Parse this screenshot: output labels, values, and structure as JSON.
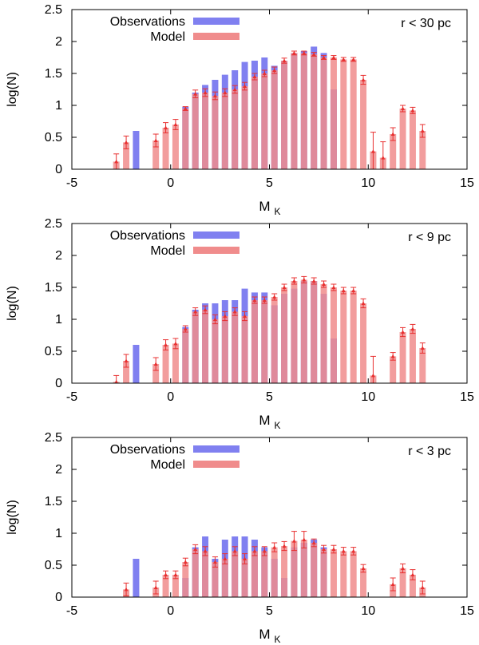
{
  "colors": {
    "observations": "#8080f0",
    "model": "#f08c8c",
    "errorbar": "#e83030",
    "axis": "#000000"
  },
  "chart_data": [
    {
      "type": "bar",
      "annotation": "r < 30 pc",
      "xlabel": "M",
      "xlabel_sub": "K",
      "ylabel": "log(N)",
      "xlim": [
        -5,
        15
      ],
      "ylim": [
        0,
        2.5
      ],
      "xticks": [
        "-5",
        "0",
        "5",
        "10",
        "15"
      ],
      "yticks": [
        "0",
        "0.5",
        "1",
        "1.5",
        "2",
        "2.5"
      ],
      "legend_position": "top-left",
      "series": [
        {
          "name": "Observations",
          "x": [
            -1.75,
            0.75,
            1.25,
            1.75,
            2.25,
            2.75,
            3.25,
            3.75,
            4.25,
            4.75,
            5.25,
            5.75,
            6.25,
            6.75,
            7.25,
            7.75,
            8.25
          ],
          "values": [
            0.6,
            0.98,
            1.2,
            1.32,
            1.4,
            1.48,
            1.55,
            1.68,
            1.7,
            1.75,
            1.62,
            1.7,
            1.82,
            1.85,
            1.92,
            1.82,
            1.25
          ]
        },
        {
          "name": "Model",
          "x": [
            -2.75,
            -2.25,
            -0.75,
            -0.25,
            0.25,
            0.75,
            1.25,
            1.75,
            2.25,
            2.75,
            3.25,
            3.75,
            4.25,
            4.75,
            5.25,
            5.75,
            6.25,
            6.75,
            7.25,
            7.75,
            8.25,
            8.75,
            9.25,
            9.75,
            10.25,
            10.75,
            11.25,
            11.75,
            12.25,
            12.75
          ],
          "values": [
            0.12,
            0.42,
            0.45,
            0.65,
            0.7,
            0.95,
            1.18,
            1.2,
            1.15,
            1.2,
            1.25,
            1.3,
            1.45,
            1.5,
            1.55,
            1.7,
            1.82,
            1.82,
            1.8,
            1.75,
            1.75,
            1.72,
            1.72,
            1.4,
            0.28,
            0.18,
            0.55,
            0.95,
            0.92,
            0.6
          ],
          "errors": [
            0.12,
            0.1,
            0.1,
            0.08,
            0.08,
            0.03,
            0.06,
            0.06,
            0.06,
            0.06,
            0.06,
            0.06,
            0.05,
            0.05,
            0.05,
            0.04,
            0.03,
            0.03,
            0.03,
            0.03,
            0.03,
            0.03,
            0.03,
            0.07,
            0.3,
            0.25,
            0.1,
            0.05,
            0.05,
            0.1
          ]
        }
      ]
    },
    {
      "type": "bar",
      "annotation": "r < 9 pc",
      "xlabel": "M",
      "xlabel_sub": "K",
      "ylabel": "log(N)",
      "xlim": [
        -5,
        15
      ],
      "ylim": [
        0,
        2.5
      ],
      "xticks": [
        "-5",
        "0",
        "5",
        "10",
        "15"
      ],
      "yticks": [
        "0",
        "0.5",
        "1",
        "1.5",
        "2",
        "2.5"
      ],
      "legend_position": "top-left",
      "series": [
        {
          "name": "Observations",
          "x": [
            -1.75,
            0.75,
            1.25,
            1.75,
            2.25,
            2.75,
            3.25,
            3.75,
            4.25,
            4.75,
            5.25,
            5.75,
            6.25,
            6.75,
            7.25,
            7.75,
            8.25
          ],
          "values": [
            0.6,
            0.88,
            1.15,
            1.25,
            1.25,
            1.3,
            1.3,
            1.48,
            1.42,
            1.42,
            1.22,
            1.4,
            1.48,
            1.6,
            1.6,
            1.4,
            0.7
          ],
          "errors": []
        },
        {
          "name": "Model",
          "x": [
            -2.75,
            -2.25,
            -0.75,
            -0.25,
            0.25,
            0.75,
            1.25,
            1.75,
            2.25,
            2.75,
            3.25,
            3.75,
            4.25,
            4.75,
            5.25,
            5.75,
            6.25,
            6.75,
            7.25,
            7.75,
            8.25,
            8.75,
            9.25,
            9.75,
            10.25,
            11.25,
            11.75,
            12.25,
            12.75
          ],
          "values": [
            0.02,
            0.35,
            0.3,
            0.6,
            0.62,
            0.85,
            1.12,
            1.15,
            1.0,
            1.05,
            1.12,
            1.05,
            1.3,
            1.3,
            1.35,
            1.5,
            1.6,
            1.62,
            1.6,
            1.55,
            1.5,
            1.45,
            1.45,
            1.25,
            0.12,
            0.42,
            0.8,
            0.85,
            0.55
          ],
          "errors": [
            0.1,
            0.1,
            0.1,
            0.08,
            0.08,
            0.05,
            0.06,
            0.06,
            0.07,
            0.07,
            0.06,
            0.07,
            0.05,
            0.05,
            0.05,
            0.05,
            0.05,
            0.05,
            0.05,
            0.05,
            0.05,
            0.05,
            0.05,
            0.07,
            0.3,
            0.06,
            0.07,
            0.07,
            0.08
          ]
        }
      ]
    },
    {
      "type": "bar",
      "annotation": "r < 3 pc",
      "xlabel": "M",
      "xlabel_sub": "K",
      "ylabel": "log(N)",
      "xlim": [
        -5,
        15
      ],
      "ylim": [
        0,
        2.5
      ],
      "xticks": [
        "-5",
        "0",
        "5",
        "10",
        "15"
      ],
      "yticks": [
        "0",
        "0.5",
        "1",
        "1.5",
        "2",
        "2.5"
      ],
      "legend_position": "top-left",
      "series": [
        {
          "name": "Observations",
          "x": [
            -1.75,
            0.75,
            1.25,
            1.75,
            2.25,
            2.75,
            3.25,
            3.75,
            4.25,
            4.75,
            5.25,
            5.75,
            6.25,
            6.75,
            7.25,
            7.75
          ],
          "values": [
            0.6,
            0.3,
            0.78,
            0.95,
            0.6,
            0.9,
            0.95,
            0.95,
            0.9,
            0.78,
            0.6,
            0.3,
            0.78,
            0.85,
            0.9,
            0.78
          ],
          "errors": []
        },
        {
          "name": "Model",
          "x": [
            -2.25,
            -0.75,
            -0.25,
            0.25,
            0.75,
            1.25,
            1.75,
            2.25,
            2.75,
            3.25,
            3.75,
            4.25,
            4.75,
            5.25,
            5.75,
            6.25,
            6.75,
            7.25,
            7.75,
            8.25,
            8.75,
            9.25,
            9.75,
            11.25,
            11.75,
            12.25,
            12.75
          ],
          "values": [
            0.12,
            0.15,
            0.35,
            0.35,
            0.55,
            0.75,
            0.72,
            0.55,
            0.6,
            0.72,
            0.6,
            0.72,
            0.72,
            0.78,
            0.8,
            0.88,
            0.9,
            0.85,
            0.75,
            0.75,
            0.72,
            0.72,
            0.45,
            0.2,
            0.45,
            0.35,
            0.15
          ],
          "errors": [
            0.1,
            0.1,
            0.06,
            0.06,
            0.06,
            0.07,
            0.07,
            0.08,
            0.08,
            0.07,
            0.08,
            0.07,
            0.07,
            0.07,
            0.07,
            0.15,
            0.13,
            0.06,
            0.06,
            0.06,
            0.06,
            0.06,
            0.06,
            0.1,
            0.07,
            0.08,
            0.1
          ]
        }
      ]
    }
  ]
}
